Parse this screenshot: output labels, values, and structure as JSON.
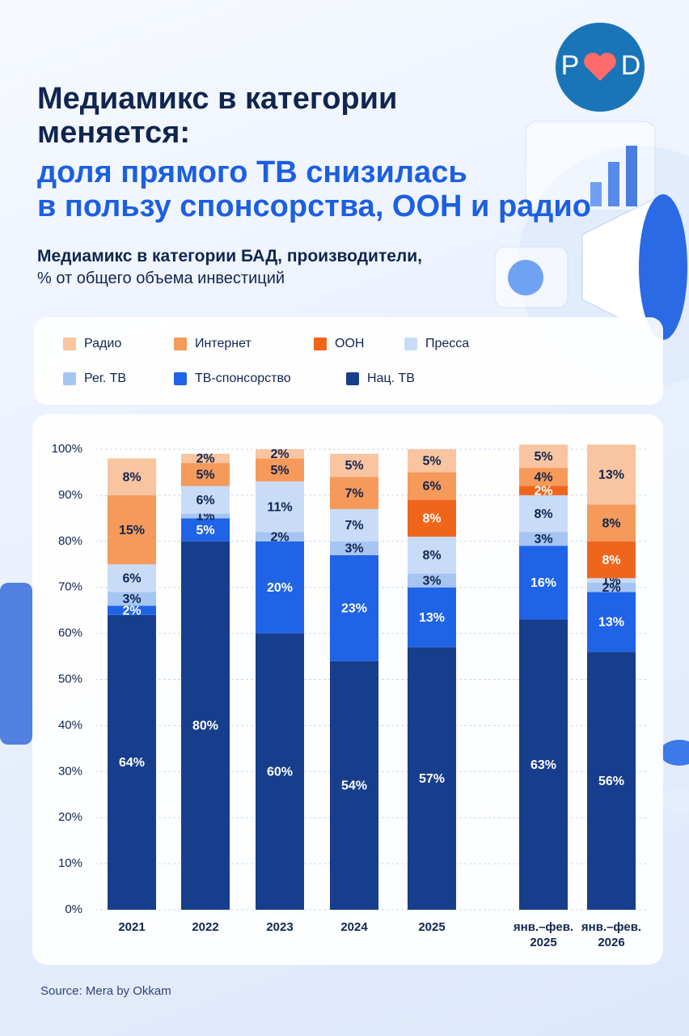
{
  "chart_data": {
    "type": "bar",
    "stacked": true,
    "logo": {
      "left": "P",
      "right": "D"
    },
    "title": [
      "Медиамикс в категории",
      "меняется:"
    ],
    "highlight": [
      "доля прямого ТВ снизилась",
      "в пользу спонсорства, ООН и радио"
    ],
    "subtitle": [
      "Медиамикс в категории БАД, производители,",
      "% от общего объема инвестиций"
    ],
    "categories": [
      "2021",
      "2022",
      "2023",
      "2024",
      "2025",
      "янв.–фев. 2025",
      "янв.–фев. 2026"
    ],
    "series": [
      {
        "name": "Радио",
        "color": "#f9c4a0",
        "values": [
          8,
          2,
          2,
          5,
          5,
          5,
          13
        ],
        "value_labels": [
          "8%",
          "2%",
          "2%",
          "5%",
          "5%",
          "5%",
          "13%"
        ]
      },
      {
        "name": "Интернет",
        "color": "#f59a5a",
        "values": [
          15,
          5,
          5,
          7,
          6,
          4,
          8
        ],
        "value_labels": [
          "15%",
          "5%",
          "5%",
          "7%",
          "6%",
          "4%",
          "8%"
        ]
      },
      {
        "name": "ООН",
        "color": "#f0651c",
        "values": [
          null,
          null,
          null,
          null,
          8,
          2,
          8
        ],
        "value_labels": [
          null,
          null,
          null,
          null,
          "8%",
          "2%",
          "8%"
        ]
      },
      {
        "name": "Пресса",
        "color": "#c8dcf8",
        "values": [
          6,
          6,
          11,
          7,
          8,
          8,
          1
        ],
        "value_labels": [
          "6%",
          "6%",
          "11%",
          "7%",
          "8%",
          "8%",
          "1%"
        ]
      },
      {
        "name": "Рег. ТВ",
        "color": "#a6c5f2",
        "values": [
          3,
          1,
          2,
          3,
          3,
          3,
          2
        ],
        "value_labels": [
          "3%",
          "1%",
          "2%",
          "3%",
          "3%",
          "3%",
          "2%"
        ]
      },
      {
        "name": "ТВ-спонсорство",
        "color": "#1f63e6",
        "values": [
          2,
          5,
          20,
          23,
          13,
          16,
          13
        ],
        "value_labels": [
          "2%",
          "5%",
          "20%",
          "23%",
          "13%",
          "16%",
          "13%"
        ]
      },
      {
        "name": "Нац. ТВ",
        "color": "#173e8c",
        "values": [
          64,
          80,
          60,
          54,
          57,
          63,
          56
        ],
        "value_labels": [
          "64%",
          "80%",
          "60%",
          "54%",
          "57%",
          "63%",
          "56%"
        ]
      }
    ],
    "ylim": [
      0,
      100
    ],
    "yticks": [
      {
        "value": 0,
        "label": "0%"
      },
      {
        "value": 10,
        "label": "10%"
      },
      {
        "value": 20,
        "label": "20%"
      },
      {
        "value": 30,
        "label": "30%"
      },
      {
        "value": 40,
        "label": "40%"
      },
      {
        "value": 50,
        "label": "50%"
      },
      {
        "value": 60,
        "label": "60%"
      },
      {
        "value": 70,
        "label": "70%"
      },
      {
        "value": 80,
        "label": "80%"
      },
      {
        "value": 90,
        "label": "90%"
      },
      {
        "value": 100,
        "label": "100%"
      }
    ],
    "grid": true,
    "source": "Source: Mera by Okkam"
  }
}
